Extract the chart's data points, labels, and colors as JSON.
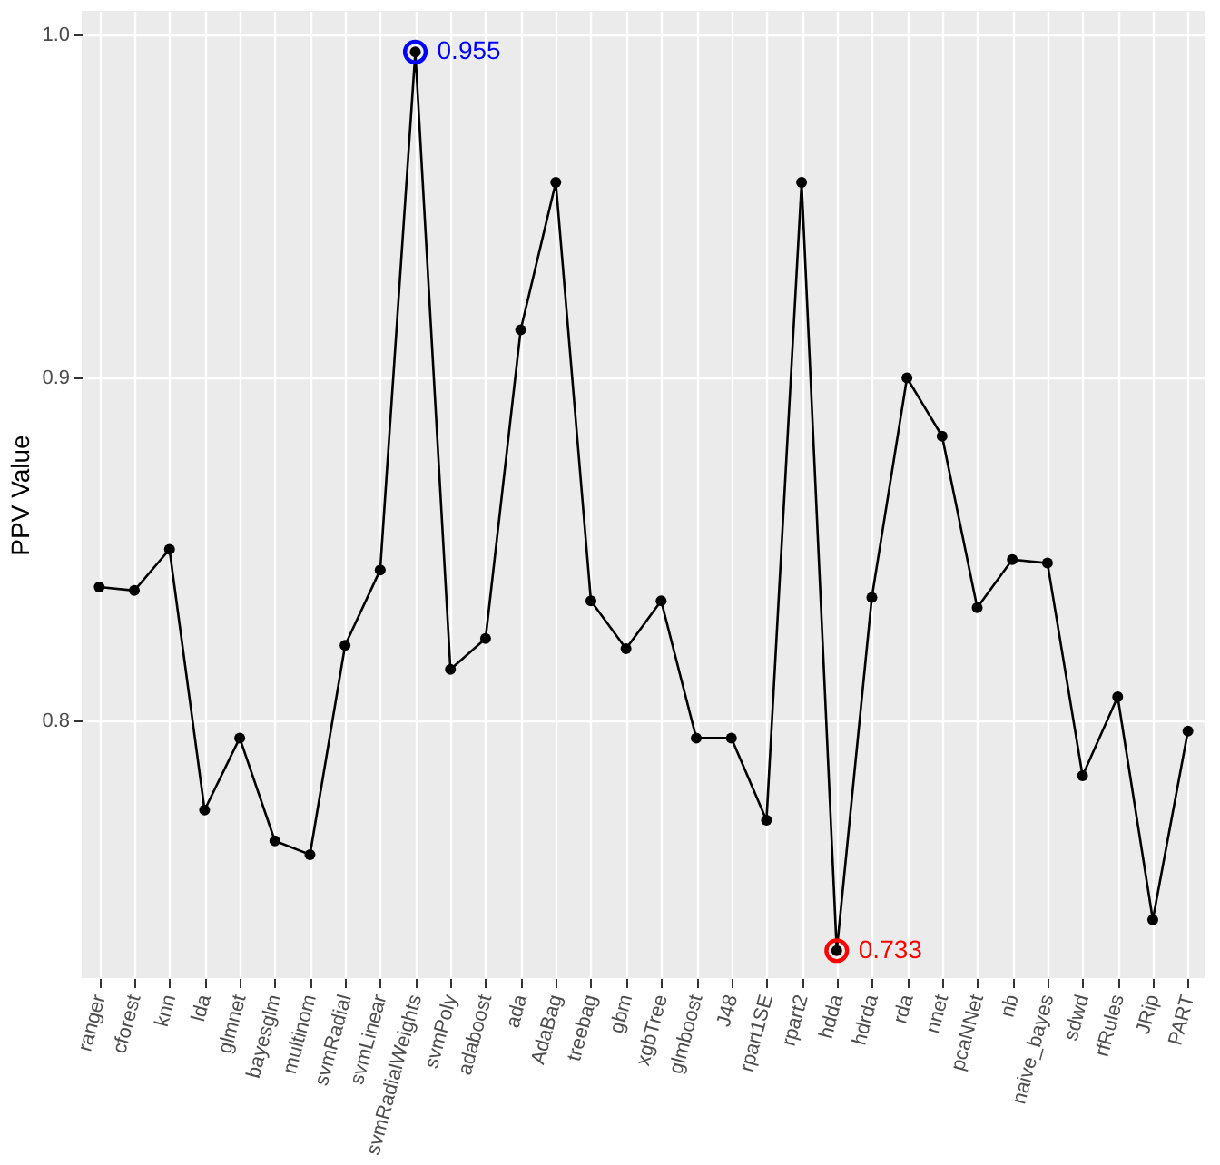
{
  "chart_data": {
    "type": "line",
    "ylabel": "PPV Value",
    "categories": [
      "ranger",
      "cforest",
      "knn",
      "lda",
      "glmnet",
      "bayesglm",
      "multinom",
      "svmRadial",
      "svmLinear",
      "svmRadialWeights",
      "svmPoly",
      "adaboost",
      "ada",
      "AdaBag",
      "treebag",
      "gbm",
      "xgbTree",
      "glmboost",
      "J48",
      "rpart1SE",
      "rpart2",
      "hdda",
      "hdrda",
      "rda",
      "nnet",
      "pcaNNet",
      "nb",
      "naive_bayes",
      "sdwd",
      "rfRules",
      "JRip",
      "PART"
    ],
    "series": [
      {
        "color": "#000000",
        "values": [
          0.839,
          0.838,
          0.85,
          0.774,
          0.795,
          0.765,
          0.761,
          0.822,
          0.844,
          0.995,
          0.815,
          0.824,
          0.914,
          0.957,
          0.835,
          0.821,
          0.835,
          0.795,
          0.795,
          0.771,
          0.957,
          0.733,
          0.836,
          0.9,
          0.883,
          0.833,
          0.847,
          0.846,
          0.784,
          0.807,
          0.742,
          0.797
        ]
      },
      {
        "type": "scatter",
        "x": [
          "svmRadialWeights"
        ],
        "values": [
          0.995
        ],
        "color": "#0000ff"
      },
      {
        "type": "scatter",
        "x": [
          "hdda"
        ],
        "values": [
          0.733
        ],
        "color": "#ff0000"
      }
    ],
    "annotations": [
      {
        "text": "0.955",
        "x": "svmRadialWeights",
        "y": 0.995
      },
      {
        "text": "0.733",
        "x": "hdda",
        "y": 0.733
      }
    ],
    "ylim": [
      0.725,
      1.007
    ],
    "yticks": [
      0.8,
      0.9,
      {
        "value": 1,
        "label": "1.0"
      }
    ],
    "grid": true,
    "marker": "circle",
    "line_style": "solid"
  }
}
